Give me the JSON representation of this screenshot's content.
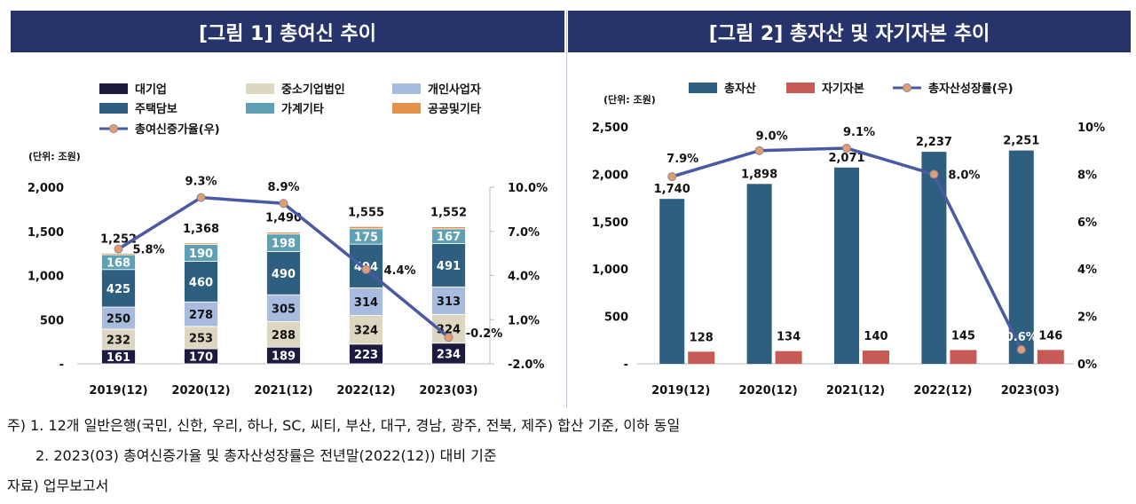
{
  "figure1": {
    "title": "[그림 1] 총여신 추이",
    "unit": "(단위: 조원)",
    "legend": [
      "대기업",
      "중소기업법인",
      "개인사업자",
      "주택담보",
      "가계기타",
      "공공및기타",
      "총여신증가율(우)"
    ],
    "colors": {
      "banner": "#27346b",
      "line": "#4a5aa2",
      "marker": "#e59c76"
    }
  },
  "figure2": {
    "title": "[그림 2] 총자산 및 자기자본 추이",
    "unit": "(단위: 조원)",
    "legend": [
      "총자산",
      "자기자본",
      "총자산성장률(우)"
    ]
  },
  "chart_data": [
    {
      "type": "bar",
      "stacked": true,
      "title": "[그림 1] 총여신 추이",
      "categories": [
        "2019(12)",
        "2020(12)",
        "2021(12)",
        "2022(12)",
        "2023(03)"
      ],
      "series": [
        {
          "name": "대기업",
          "color": "#1d1a3f",
          "values": [
            161,
            170,
            189,
            223,
            234
          ]
        },
        {
          "name": "중소기업법인",
          "color": "#ddd6c1",
          "values": [
            232,
            253,
            288,
            324,
            324
          ]
        },
        {
          "name": "개인사업자",
          "color": "#a7bcdf",
          "values": [
            250,
            278,
            305,
            314,
            313
          ]
        },
        {
          "name": "주택담보",
          "color": "#2e5f80",
          "values": [
            425,
            460,
            490,
            494,
            491
          ]
        },
        {
          "name": "가계기타",
          "color": "#5fa0b5",
          "values": [
            168,
            190,
            198,
            175,
            167
          ]
        },
        {
          "name": "공공및기타",
          "color": "#e4914a",
          "values": [
            16,
            17,
            20,
            25,
            23
          ]
        }
      ],
      "totals": [
        1252,
        1368,
        1490,
        1555,
        1552
      ],
      "total_labels": [
        "1,252",
        "1,368",
        "1,490",
        "1,555",
        "1,552"
      ],
      "line": {
        "name": "총여신증가율(우)",
        "values": [
          5.8,
          9.3,
          8.9,
          4.4,
          -0.2
        ],
        "labels": [
          "5.8%",
          "9.3%",
          "8.9%",
          "4.4%",
          "-0.2%"
        ]
      },
      "ylim": [
        0,
        2000
      ],
      "yticks": [
        0,
        500,
        1000,
        1500,
        2000
      ],
      "ytick_labels": [
        "-",
        "500",
        "1,000",
        "1,500",
        "2,000"
      ],
      "y2lim": [
        -2.0,
        10.0
      ],
      "y2ticks": [
        -2.0,
        1.0,
        4.0,
        7.0,
        10.0
      ],
      "y2tick_labels": [
        "-2.0%",
        "1.0%",
        "4.0%",
        "7.0%",
        "10.0%"
      ]
    },
    {
      "type": "bar",
      "title": "[그림 2] 총자산 및 자기자본 추이",
      "categories": [
        "2019(12)",
        "2020(12)",
        "2021(12)",
        "2022(12)",
        "2023(03)"
      ],
      "series": [
        {
          "name": "총자산",
          "color": "#2e5f80",
          "values": [
            1740,
            1898,
            2071,
            2237,
            2251
          ],
          "labels": [
            "1,740",
            "1,898",
            "2,071",
            "2,237",
            "2,251"
          ]
        },
        {
          "name": "자기자본",
          "color": "#c75a55",
          "values": [
            128,
            134,
            140,
            145,
            146
          ],
          "labels": [
            "128",
            "134",
            "140",
            "145",
            "146"
          ]
        }
      ],
      "line": {
        "name": "총자산성장률(우)",
        "values": [
          7.9,
          9.0,
          9.1,
          8.0,
          0.6
        ],
        "labels": [
          "7.9%",
          "9.0%",
          "9.1%",
          "8.0%",
          "0.6%"
        ]
      },
      "ylim": [
        0,
        2500
      ],
      "yticks": [
        0,
        500,
        1000,
        1500,
        2000,
        2500
      ],
      "ytick_labels": [
        "-",
        "500",
        "1,000",
        "1,500",
        "2,000",
        "2,500"
      ],
      "y2lim": [
        0,
        10
      ],
      "y2ticks": [
        0,
        2,
        4,
        6,
        8,
        10
      ],
      "y2tick_labels": [
        "0%",
        "2%",
        "4%",
        "6%",
        "8%",
        "10%"
      ]
    }
  ],
  "notes": {
    "note1": "주) 1. 12개 일반은행(국민, 신한, 우리, 하나, SC, 씨티, 부산, 대구, 경남, 광주, 전북, 제주) 합산 기준, 이하 동일",
    "note2": "2. 2023(03) 총여신증가율 및 총자산성장률은 전년말(2022(12)) 대비 기준",
    "source": "자료) 업무보고서"
  }
}
